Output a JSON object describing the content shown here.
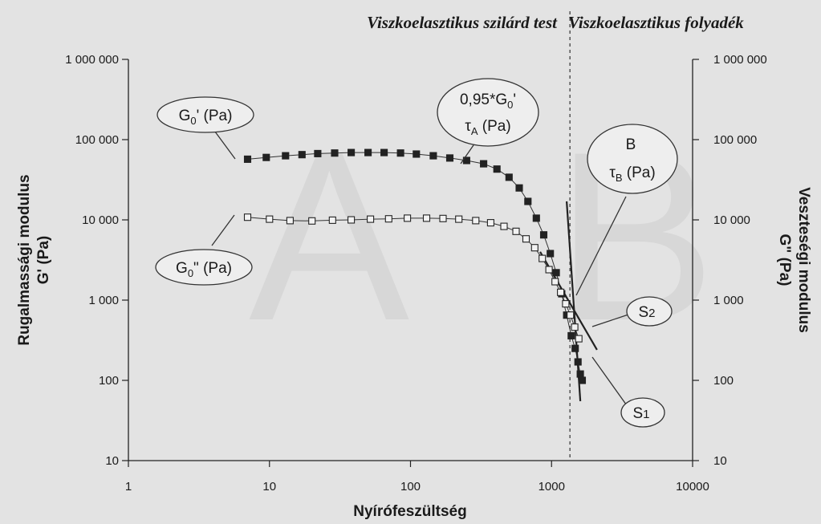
{
  "chart_data": {
    "type": "scatter",
    "x_scale": "log",
    "y_scale": "log",
    "xlim": [
      1,
      10000
    ],
    "ylim": [
      10,
      1000000
    ],
    "x_ticks": [
      1,
      10,
      100,
      1000,
      10000
    ],
    "y_ticks": [
      10,
      100,
      1000,
      10000,
      100000,
      1000000
    ],
    "x_tick_labels": [
      "1",
      "10",
      "100",
      "1000",
      "10000"
    ],
    "y_tick_labels": [
      "10",
      "100",
      "1 000",
      "10 000",
      "100 000",
      "1 000 000"
    ],
    "y2_tick_labels": [
      "10",
      "100",
      "1 000",
      "10 000",
      "100 000",
      "1 000 000"
    ],
    "xlabel": "Nyírófeszültség",
    "ylabel": [
      "Rugalmassági modulus",
      "G' (Pa)"
    ],
    "ylabel_right": [
      "Veszteségi modulus",
      "G\" (Pa)"
    ],
    "region_left_title": "Viszkoelasztikus szilárd test",
    "region_right_title": "Viszkoelasztikus folyadék",
    "region_divider_x": 1350,
    "background_letters": [
      "A",
      "B"
    ],
    "series": [
      {
        "marker": "filled-square",
        "x": [
          7,
          9.5,
          13,
          17,
          22,
          29,
          38,
          50,
          65,
          85,
          110,
          145,
          190,
          250,
          330,
          410,
          500,
          590,
          680,
          780,
          880,
          980,
          1080,
          1180,
          1280,
          1380,
          1470,
          1540,
          1600,
          1650
        ],
        "y": [
          57000,
          60000,
          63000,
          65000,
          67000,
          68000,
          69000,
          69000,
          69000,
          68000,
          66000,
          63000,
          59000,
          55000,
          50000,
          43000,
          34000,
          25000,
          17000,
          10500,
          6500,
          3800,
          2200,
          1200,
          650,
          360,
          250,
          170,
          120,
          100
        ]
      },
      {
        "marker": "open-square",
        "x": [
          7,
          10,
          14,
          20,
          28,
          38,
          52,
          70,
          95,
          130,
          170,
          220,
          290,
          370,
          460,
          560,
          660,
          760,
          860,
          960,
          1060,
          1160,
          1260,
          1360,
          1460,
          1560
        ],
        "y": [
          10800,
          10200,
          9800,
          9700,
          9900,
          10000,
          10200,
          10300,
          10500,
          10500,
          10400,
          10200,
          9800,
          9200,
          8300,
          7200,
          5800,
          4500,
          3300,
          2400,
          1700,
          1250,
          900,
          650,
          460,
          330
        ]
      }
    ],
    "tangent_lines": [
      {
        "from": [
          1280,
          17000
        ],
        "to": [
          1600,
          55
        ]
      },
      {
        "from": [
          830,
          4000
        ],
        "to": [
          2100,
          240
        ]
      }
    ],
    "annotations": [
      {
        "text": "G0' (Pa)",
        "main": "G",
        "sub": "0",
        "suffix": "' (Pa)"
      },
      {
        "text": "G0\" (Pa)",
        "main": "G",
        "sub": "0",
        "suffix": "\" (Pa)"
      },
      {
        "text": "0,95*G0' τA (Pa)",
        "line1_main": "0,95*G",
        "line1_sub": "0",
        "line1_suffix": "'",
        "line2_main": "τ",
        "line2_sub": "A",
        "line2_suffix": " (Pa)"
      },
      {
        "text": "B τB (Pa)",
        "line1_main": "B",
        "line2_main": "τ",
        "line2_sub": "B",
        "line2_suffix": " (Pa)"
      },
      {
        "text": "S2",
        "main": "S",
        "sub": "2"
      },
      {
        "text": "S1",
        "main": "S",
        "sub": "1"
      }
    ]
  }
}
